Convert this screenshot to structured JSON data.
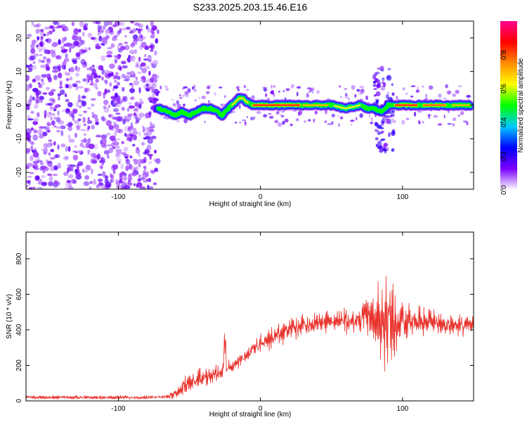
{
  "title": "S233.2025.203.15.46.E16",
  "chart_data": [
    {
      "type": "heatmap",
      "xlabel": "Height of straight line (km)",
      "ylabel": "Frequency (Hz)",
      "xlim": [
        -165,
        150
      ],
      "ylim": [
        -25,
        25
      ],
      "xticks": [
        -100,
        0,
        100
      ],
      "yticks": [
        -20,
        -10,
        0,
        10,
        20
      ],
      "noise_region_x": [
        -165,
        -72
      ],
      "ridge": {
        "x": [
          -72,
          -65,
          -60,
          -55,
          -50,
          -45,
          -40,
          -35,
          -30,
          -27,
          -25,
          -20,
          -15,
          -12,
          -10,
          -5,
          0,
          10,
          20,
          30,
          40,
          50,
          60,
          70,
          75,
          80,
          85,
          90,
          95,
          100,
          110,
          120,
          130,
          140,
          148
        ],
        "freq": [
          -1,
          -2,
          -3,
          -2,
          -3,
          -2,
          -1,
          -1,
          -2,
          -3,
          -2,
          0,
          2,
          2,
          1,
          0,
          0,
          0,
          0,
          0,
          0,
          0,
          -1,
          0,
          -1,
          -1,
          -2,
          0,
          0,
          0,
          0,
          0,
          0,
          0,
          0
        ]
      },
      "colorbar": {
        "label": "Normalized spectral amplitude",
        "range": [
          0.0,
          1.0
        ],
        "ticks": [
          0.0,
          0.2,
          0.4,
          0.6,
          0.8
        ],
        "tick_labels": [
          "0.0",
          "0.2",
          "0.4",
          "0.6",
          "0.8"
        ],
        "colors": [
          "#ffffff",
          "#7b00ff",
          "#0000ff",
          "#00c8ff",
          "#00ff00",
          "#ffff00",
          "#ff8c00",
          "#ff0000",
          "#ff0090"
        ]
      }
    },
    {
      "type": "line",
      "xlabel": "Height of straight line (km)",
      "ylabel": "SNR (10 * v/v)",
      "xlim": [
        -165,
        150
      ],
      "ylim": [
        0,
        950
      ],
      "xticks": [
        -100,
        0,
        100
      ],
      "yticks": [
        0,
        200,
        400,
        600,
        800
      ],
      "series": [
        {
          "color": "#e8302a",
          "x": [
            -165,
            -150,
            -130,
            -110,
            -90,
            -75,
            -70,
            -65,
            -60,
            -55,
            -50,
            -45,
            -40,
            -35,
            -30,
            -25,
            -20,
            -15,
            -10,
            -5,
            0,
            10,
            20,
            30,
            40,
            50,
            60,
            70,
            80,
            85,
            90,
            95,
            100,
            110,
            120,
            130,
            140,
            150
          ],
          "y": [
            20,
            20,
            20,
            20,
            20,
            20,
            22,
            25,
            40,
            80,
            110,
            120,
            130,
            140,
            160,
            180,
            200,
            225,
            255,
            290,
            320,
            360,
            400,
            420,
            440,
            450,
            450,
            455,
            460,
            460,
            450,
            440,
            460,
            450,
            450,
            430,
            420,
            430
          ],
          "spread": [
            15,
            15,
            15,
            15,
            15,
            15,
            15,
            20,
            40,
            70,
            90,
            80,
            80,
            70,
            80,
            60,
            60,
            60,
            70,
            80,
            80,
            90,
            90,
            90,
            90,
            90,
            100,
            130,
            200,
            350,
            430,
            300,
            150,
            110,
            100,
            90,
            90,
            80
          ]
        }
      ]
    }
  ]
}
